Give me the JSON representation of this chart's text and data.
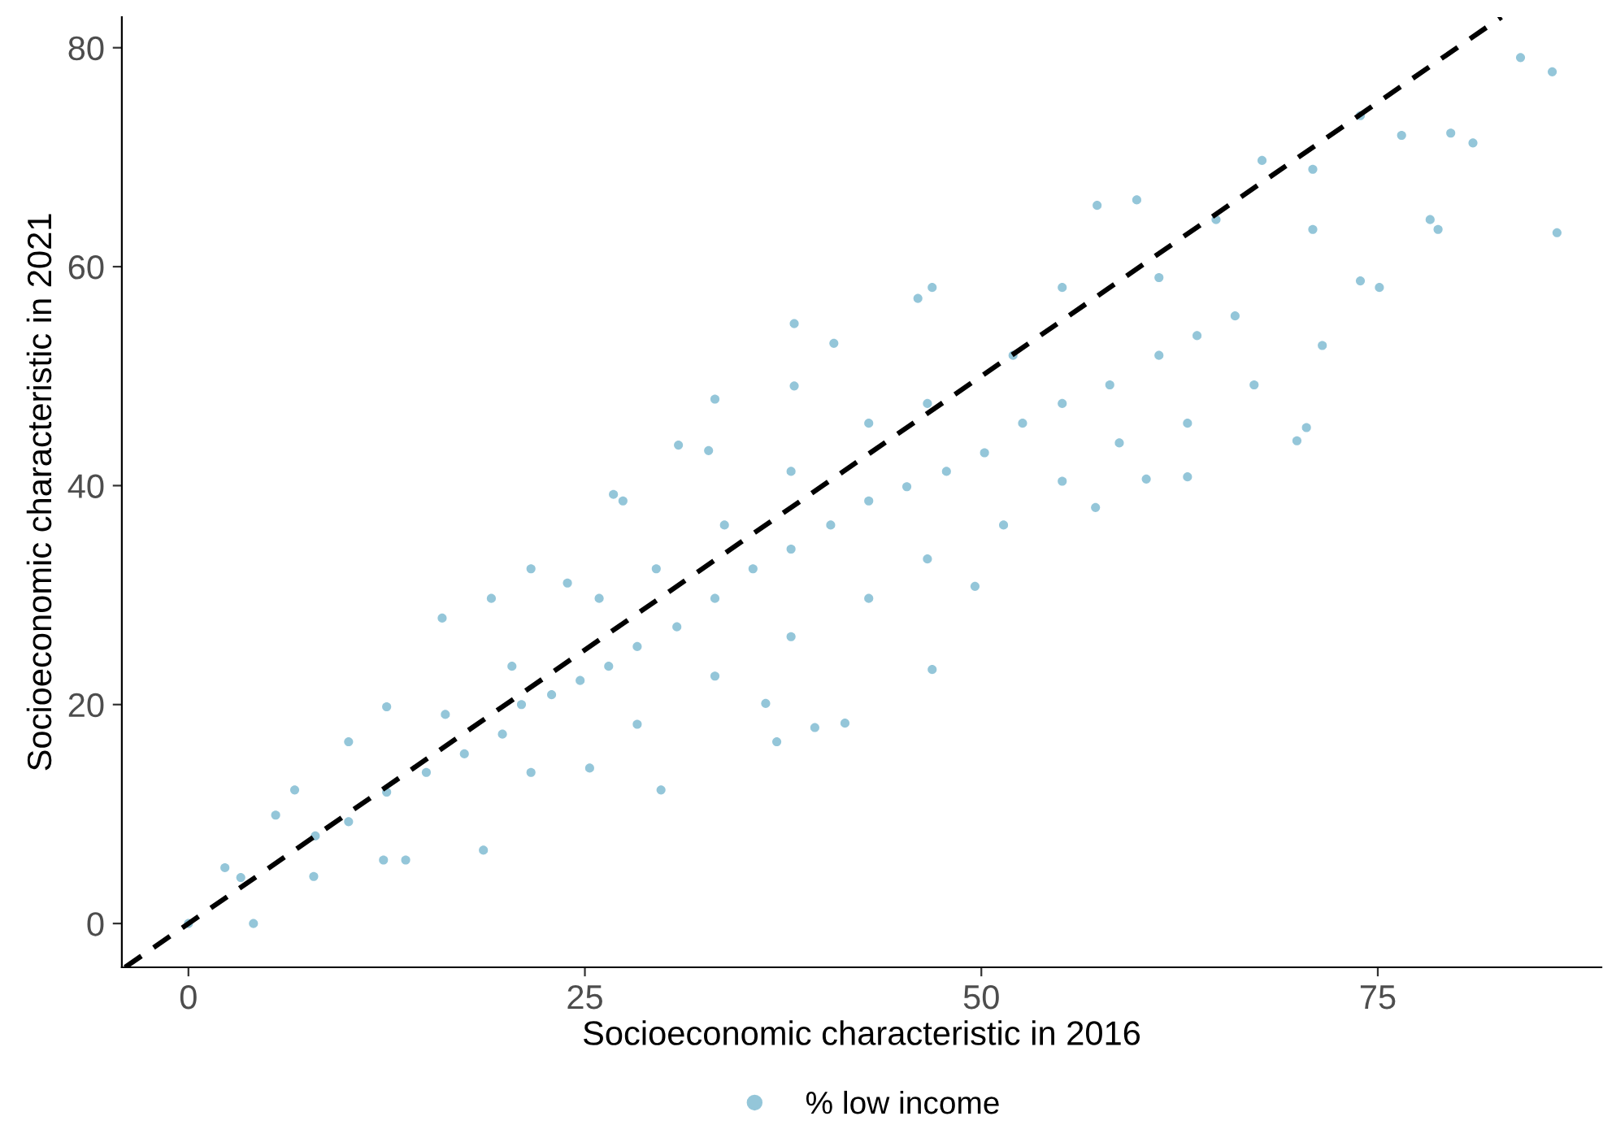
{
  "chart_data": {
    "type": "scatter",
    "xlabel": "Socioeconomic characteristic in 2016",
    "ylabel": "Socioeconomic characteristic in 2021",
    "xlim": [
      -4.2,
      89.1
    ],
    "ylim": [
      -4.0,
      82.8
    ],
    "xticks": [
      0,
      25,
      50,
      75
    ],
    "yticks": [
      0,
      20,
      40,
      60,
      80
    ],
    "grid": false,
    "legend": "bottom",
    "marker": "circle",
    "series": [
      {
        "name": "% low income",
        "color": "#94c6d9",
        "x": [
          0,
          4.1,
          2.3,
          3.3,
          5.5,
          6.7,
          7.9,
          10.1,
          12.5,
          12.3,
          13.7,
          16.0,
          18.6,
          19.1,
          21.6,
          23.9,
          25.3,
          26.8,
          27.4,
          29.8,
          30.9,
          33.2,
          32.8,
          36.4,
          37.1,
          38.2,
          38.2,
          40.7,
          39.5,
          41.4,
          46.9,
          46.0,
          46.9,
          49.6,
          57.3,
          59.8,
          57.2,
          60.4,
          63.0,
          67.7,
          69.9,
          70.5,
          70.9,
          73.9,
          76.5,
          79.6,
          81.0,
          84.0,
          86.0,
          86.3,
          78.3,
          73.9,
          8.0,
          10.1,
          12.5,
          15.0,
          17.4,
          19.8,
          21.0,
          22.9,
          24.7,
          26.5,
          28.3,
          30.8,
          33.2,
          35.6,
          38.0,
          40.5,
          42.9,
          45.3,
          47.8,
          50.2,
          52.6,
          55.1,
          58.1,
          61.2,
          63.6,
          66.0,
          16.2,
          20.4,
          25.9,
          29.5,
          33.8,
          38.0,
          42.9,
          46.6,
          52.0,
          55.1,
          61.2,
          64.8,
          21.6,
          28.3,
          33.2,
          38.0,
          42.9,
          46.6,
          51.4,
          55.1,
          58.7,
          63.0,
          67.2,
          71.5,
          75.1,
          78.8,
          70.9
        ],
        "values": [
          0,
          0,
          5.1,
          4.2,
          9.9,
          12.2,
          4.3,
          16.6,
          19.8,
          5.8,
          5.8,
          27.9,
          6.7,
          29.7,
          32.4,
          31.1,
          14.2,
          39.2,
          38.6,
          12.2,
          43.7,
          47.9,
          43.2,
          20.1,
          16.6,
          54.8,
          49.1,
          53.0,
          17.9,
          18.3,
          58.1,
          57.1,
          23.2,
          30.8,
          65.6,
          66.1,
          38.0,
          40.6,
          40.8,
          69.7,
          44.1,
          45.3,
          68.9,
          58.7,
          72.0,
          72.2,
          71.3,
          79.1,
          77.8,
          63.1,
          64.3,
          73.8,
          8.0,
          9.3,
          12.0,
          13.8,
          15.5,
          17.3,
          20.0,
          20.9,
          22.2,
          23.5,
          25.3,
          27.1,
          29.7,
          32.4,
          34.2,
          36.4,
          38.6,
          39.9,
          41.3,
          43.0,
          45.7,
          47.5,
          49.2,
          51.9,
          53.7,
          55.5,
          19.1,
          23.5,
          29.7,
          32.4,
          36.4,
          41.3,
          45.7,
          47.5,
          51.9,
          58.1,
          59.0,
          64.3,
          13.8,
          18.2,
          22.6,
          26.2,
          29.7,
          33.3,
          36.4,
          40.4,
          43.9,
          45.7,
          49.2,
          52.8,
          58.1,
          63.4,
          63.4
        ]
      },
      {
        "type": "line",
        "color": "#000000",
        "line_style": "dashed",
        "marker": "none",
        "x": [
          -4.0,
          82.8
        ],
        "values": [
          -4.0,
          82.8
        ]
      }
    ]
  }
}
